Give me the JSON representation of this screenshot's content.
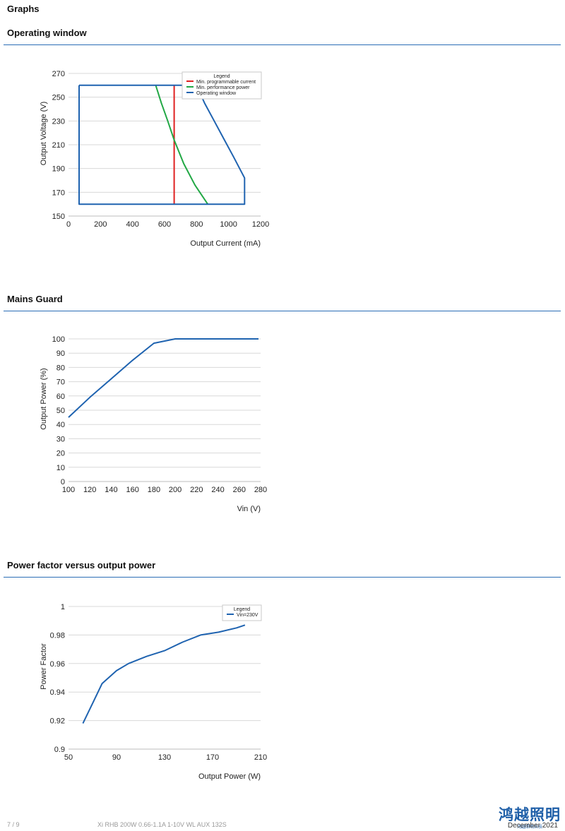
{
  "page": {
    "heading": "Graphs",
    "footer_page": "7 / 9",
    "footer_product": "Xi RHB 200W 0.66-1.1A 1-10V WL AUX 132S",
    "footer_date": "December 2021",
    "logo_text": "鸿越照明",
    "logo_subtext": "鸿越照明科技"
  },
  "sections": [
    {
      "title": "Operating window"
    },
    {
      "title": "Mains Guard"
    },
    {
      "title": "Power factor versus output power"
    }
  ],
  "colors": {
    "accent": "#2a6db5",
    "blue": "#1f63b0",
    "red": "#e02020",
    "green": "#22a845",
    "grid": "#d8d8d8"
  },
  "chart_data": [
    {
      "type": "line",
      "xlabel": "Output Current (mA)",
      "ylabel": "Output Voltage (V)",
      "xlim": [
        0,
        1200
      ],
      "ylim": [
        150,
        270
      ],
      "xticks": [
        0,
        200,
        400,
        600,
        800,
        1000,
        1200
      ],
      "yticks": [
        150,
        170,
        190,
        210,
        230,
        250,
        270
      ],
      "grid": "horizontal",
      "legend": {
        "title": "Legend",
        "placement": "top-right"
      },
      "series": [
        {
          "name": "Min. programmable current",
          "color": "#e02020",
          "points": [
            [
              660,
              160
            ],
            [
              660,
              260
            ]
          ]
        },
        {
          "name": "Min. performance power",
          "color": "#22a845",
          "points": [
            [
              545,
              260
            ],
            [
              580,
              245
            ],
            [
              620,
              230
            ],
            [
              660,
              214
            ],
            [
              720,
              194
            ],
            [
              790,
              176
            ],
            [
              870,
              160
            ]
          ]
        },
        {
          "name": "Operating window",
          "color": "#1f63b0",
          "points": [
            [
              66,
              260
            ],
            [
              800,
              260
            ],
            [
              850,
              245
            ],
            [
              910,
              230
            ],
            [
              970,
              215
            ],
            [
              1030,
              200
            ],
            [
              1100,
              182
            ],
            [
              1100,
              160
            ],
            [
              66,
              160
            ],
            [
              66,
              260
            ]
          ]
        }
      ]
    },
    {
      "type": "line",
      "xlabel": "Vin (V)",
      "ylabel": "Output Power (%)",
      "xlim": [
        100,
        280
      ],
      "ylim": [
        0,
        100
      ],
      "xticks": [
        100,
        120,
        140,
        160,
        180,
        200,
        220,
        240,
        260,
        280
      ],
      "yticks": [
        0,
        10,
        20,
        30,
        40,
        50,
        60,
        70,
        80,
        90,
        100
      ],
      "grid": "horizontal",
      "series": [
        {
          "color": "#1f63b0",
          "points": [
            [
              100,
              45
            ],
            [
              120,
              59
            ],
            [
              140,
              72
            ],
            [
              160,
              85
            ],
            [
              180,
              97
            ],
            [
              200,
              100
            ],
            [
              278,
              100
            ]
          ]
        }
      ]
    },
    {
      "type": "line",
      "xlabel": "Output Power (W)",
      "ylabel": "Power Factor",
      "xlim": [
        50,
        210
      ],
      "ylim": [
        0.9,
        1
      ],
      "xticks": [
        50,
        90,
        130,
        170,
        210
      ],
      "yticks": [
        0.9,
        0.92,
        0.94,
        0.96,
        0.98,
        1
      ],
      "grid": "horizontal",
      "legend": {
        "title": "Legend",
        "placement": "top-right"
      },
      "series": [
        {
          "name": "Vin=230V",
          "color": "#1f63b0",
          "points": [
            [
              62,
              0.918
            ],
            [
              70,
              0.932
            ],
            [
              78,
              0.946
            ],
            [
              90,
              0.955
            ],
            [
              100,
              0.96
            ],
            [
              115,
              0.965
            ],
            [
              130,
              0.969
            ],
            [
              145,
              0.975
            ],
            [
              160,
              0.98
            ],
            [
              175,
              0.982
            ],
            [
              190,
              0.985
            ],
            [
              197,
              0.987
            ]
          ]
        }
      ]
    }
  ]
}
